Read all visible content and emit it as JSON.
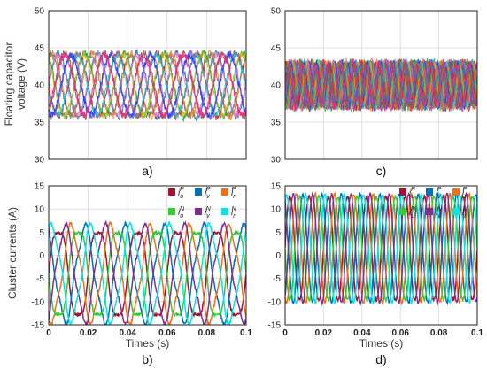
{
  "figure": {
    "ylabel_top": "Floating capacitor voltage (V)",
    "ylabel_bottom": "Cluster currents (A)",
    "xlabel": "Times (s)"
  },
  "chart_data": [
    {
      "panel": "a)",
      "type": "line",
      "ylabel": "Floating capacitor voltage (V)",
      "xlim": [
        0,
        0.1
      ],
      "ylim": [
        30,
        50
      ],
      "yticks": [
        30,
        35,
        40,
        45,
        50
      ],
      "grid": true,
      "wave": {
        "mean": 40,
        "amplitude": 4.3,
        "frequency_hz": 50,
        "phases_deg": [
          0,
          60,
          120,
          180,
          240,
          300
        ],
        "ripple": 0.5
      },
      "colors": [
        "#1f77b4",
        "#ff7f0e",
        "#2ca02c",
        "#d62728",
        "#9467bd",
        "#8c564b",
        "#e377c2",
        "#7f7f7f",
        "#bcbd22",
        "#17becf",
        "#1f3fff",
        "#ff1f8f"
      ]
    },
    {
      "panel": "c)",
      "type": "line",
      "xlim": [
        0,
        0.1
      ],
      "ylim": [
        30,
        50
      ],
      "yticks": [
        30,
        35,
        40,
        45,
        50
      ],
      "grid": true,
      "wave": {
        "mean": 40,
        "amplitude": 3.0,
        "frequency_hz": 150,
        "phases_deg": [
          0,
          30,
          60,
          90,
          120,
          150,
          180,
          210,
          240,
          270,
          300,
          330
        ],
        "ripple": 0.6
      },
      "colors": [
        "#1f77b4",
        "#ff7f0e",
        "#2ca02c",
        "#d62728",
        "#9467bd",
        "#8c564b",
        "#e377c2",
        "#7f7f7f",
        "#bcbd22",
        "#17becf",
        "#1f3fff",
        "#ff1f8f"
      ]
    },
    {
      "panel": "b)",
      "type": "line",
      "xlabel": "Times (s)",
      "ylabel": "Cluster currents (A)",
      "xlim": [
        0,
        0.1
      ],
      "ylim": [
        -15,
        15
      ],
      "xticks": [
        0,
        0.02,
        0.04,
        0.06,
        0.08,
        0.1
      ],
      "xtick_labels": [
        "0",
        "0.02",
        "0.04",
        "0.06",
        "0.08",
        "0.1"
      ],
      "yticks": [
        -15,
        -10,
        -5,
        0,
        5,
        10,
        15
      ],
      "grid": true,
      "legend_position": "top-right",
      "series": [
        {
          "name": "i_u^P",
          "sup": "P",
          "sub": "u",
          "color": "#a2142f",
          "offset": -4,
          "amplitude": 10,
          "phase_deg": 0,
          "frequency_hz": 50
        },
        {
          "name": "i_v^P",
          "sup": "P",
          "sub": "v",
          "color": "#0072bd",
          "offset": -4,
          "amplitude": 10,
          "phase_deg": 120,
          "frequency_hz": 50
        },
        {
          "name": "i_r^P",
          "sup": "P",
          "sub": "r",
          "color": "#e8731a",
          "offset": -4,
          "amplitude": 10,
          "phase_deg": 240,
          "frequency_hz": 50
        },
        {
          "name": "i_u^N",
          "sup": "N",
          "sub": "u",
          "color": "#33cc33",
          "offset": -4,
          "amplitude": 10,
          "phase_deg": 180,
          "frequency_hz": 50
        },
        {
          "name": "i_v^N",
          "sup": "N",
          "sub": "v",
          "color": "#7e2f8e",
          "offset": -4,
          "amplitude": 10,
          "phase_deg": 300,
          "frequency_hz": 50
        },
        {
          "name": "i_r^N",
          "sup": "N",
          "sub": "r",
          "color": "#00e5e5",
          "offset": -4,
          "amplitude": 10,
          "phase_deg": 60,
          "frequency_hz": 50
        }
      ]
    },
    {
      "panel": "d)",
      "type": "line",
      "xlabel": "Times (s)",
      "xlim": [
        0,
        0.1
      ],
      "ylim": [
        -15,
        15
      ],
      "xticks": [
        0,
        0.02,
        0.04,
        0.06,
        0.08,
        0.1
      ],
      "xtick_labels": [
        "0",
        "0.02",
        "0.04",
        "0.06",
        "0.08",
        "0.1"
      ],
      "yticks": [
        -15,
        -10,
        -5,
        0,
        5,
        10,
        15
      ],
      "grid": true,
      "legend_position": "top-right",
      "series": [
        {
          "name": "i_u^P",
          "sup": "P",
          "sub": "u",
          "color": "#a2142f",
          "offset": 1.5,
          "amplitude": 11.5,
          "phase_deg": 0,
          "frequency_hz": 100
        },
        {
          "name": "i_v^P",
          "sup": "P",
          "sub": "v",
          "color": "#0072bd",
          "offset": 1.5,
          "amplitude": 11.5,
          "phase_deg": 120,
          "frequency_hz": 100
        },
        {
          "name": "i_r^P",
          "sup": "P",
          "sub": "r",
          "color": "#e8731a",
          "offset": 1.5,
          "amplitude": 11.5,
          "phase_deg": 240,
          "frequency_hz": 100
        },
        {
          "name": "i_u^N",
          "sup": "N",
          "sub": "u",
          "color": "#33cc33",
          "offset": 1.5,
          "amplitude": 11.5,
          "phase_deg": 180,
          "frequency_hz": 100
        },
        {
          "name": "i_v^N",
          "sup": "N",
          "sub": "v",
          "color": "#7e2f8e",
          "offset": 1.5,
          "amplitude": 11.5,
          "phase_deg": 300,
          "frequency_hz": 100
        },
        {
          "name": "i_r^N",
          "sup": "N",
          "sub": "r",
          "color": "#00e5e5",
          "offset": 1.5,
          "amplitude": 11.5,
          "phase_deg": 60,
          "frequency_hz": 100
        }
      ]
    }
  ]
}
